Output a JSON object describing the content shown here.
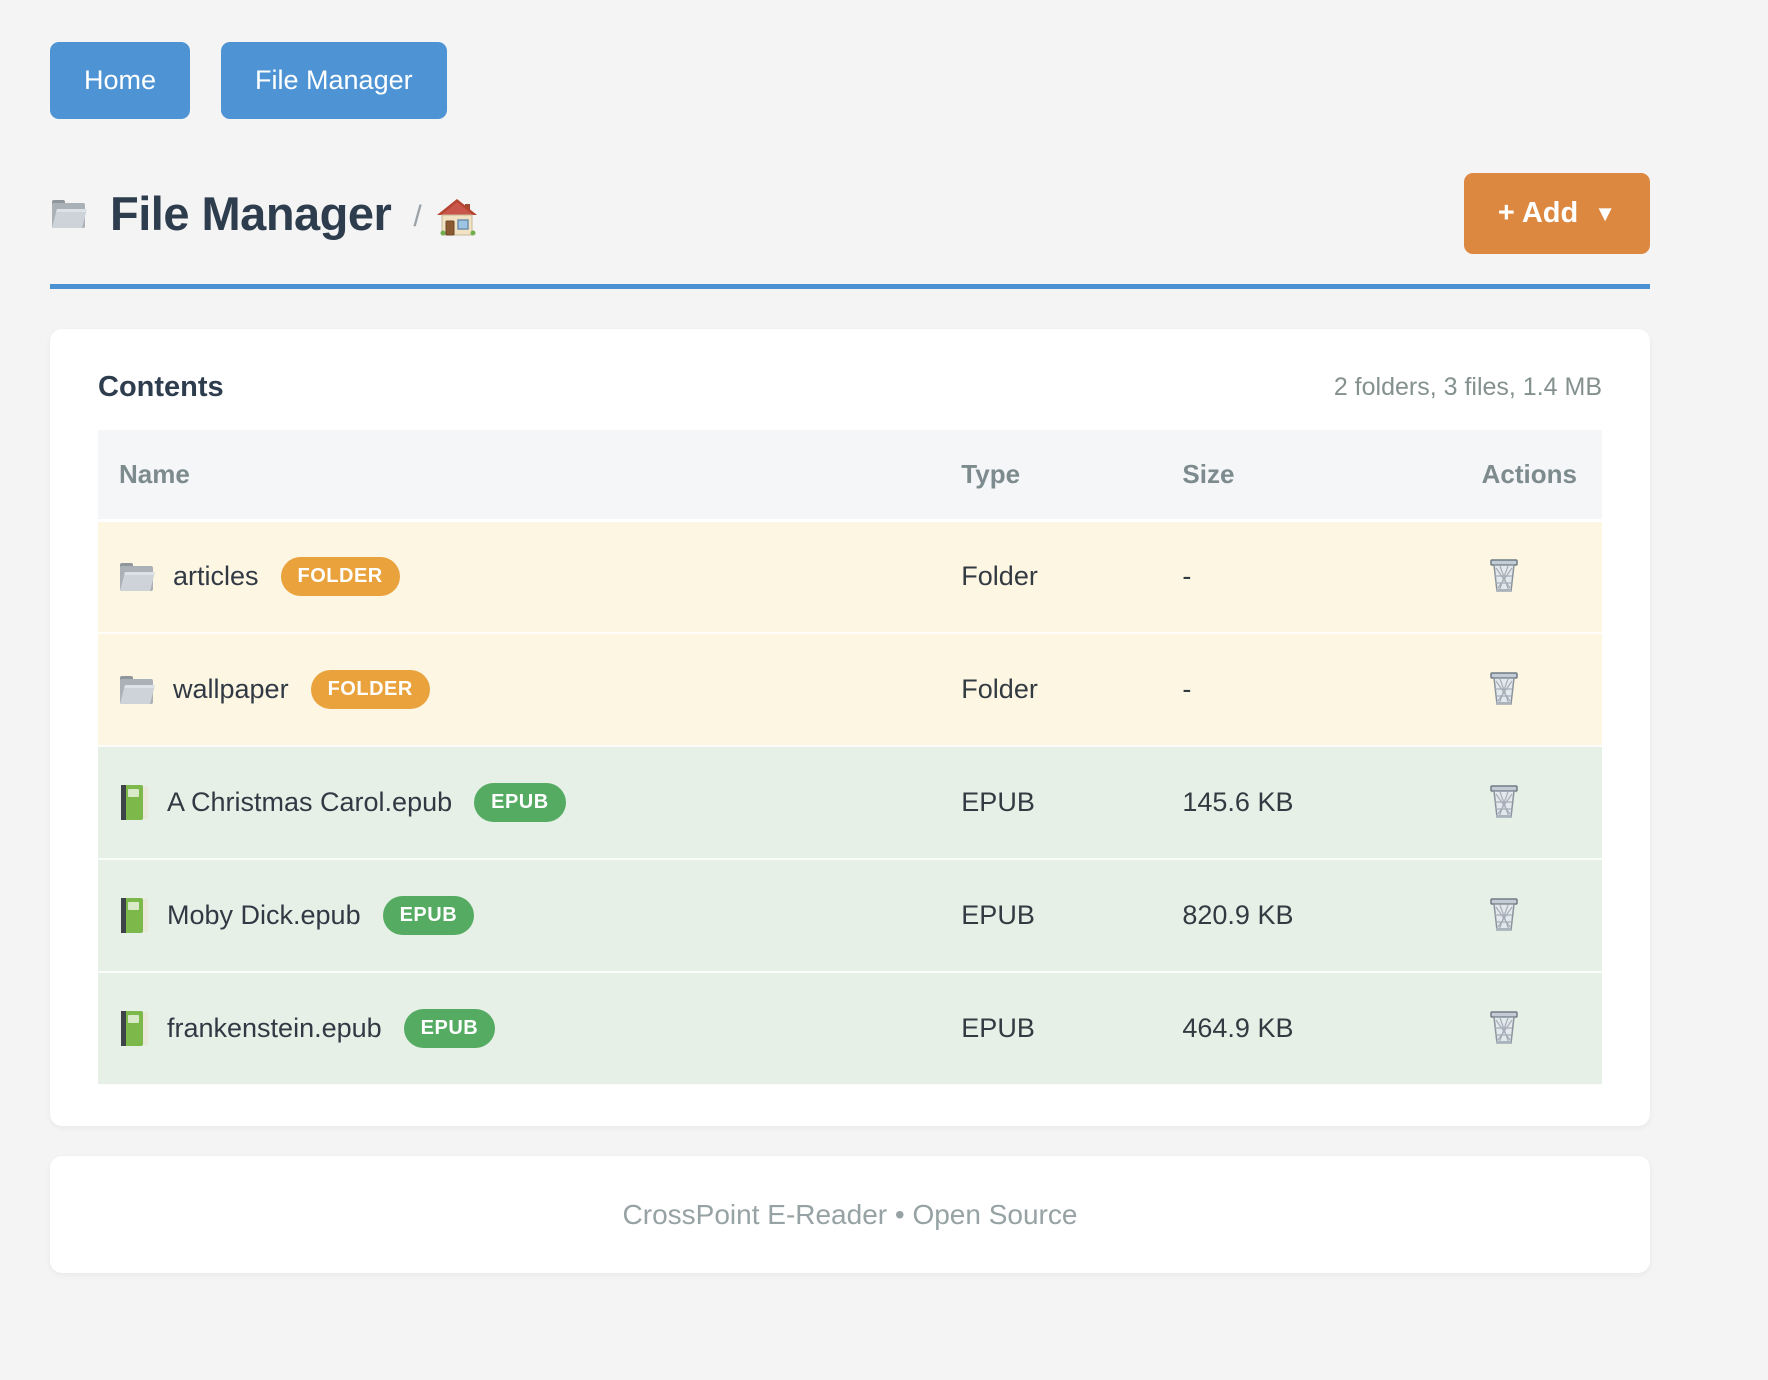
{
  "nav": {
    "buttons": [
      {
        "label": "Home"
      },
      {
        "label": "File Manager"
      }
    ]
  },
  "header": {
    "title_icon": "folder-icon",
    "title": "File Manager",
    "breadcrumb_separator": "/",
    "breadcrumb_home_icon": "house-icon",
    "add_button_label": "+ Add",
    "add_button_caret": "▼"
  },
  "contents": {
    "title": "Contents",
    "summary": "2 folders, 3 files, 1.4 MB",
    "table": {
      "columns": [
        "Name",
        "Type",
        "Size",
        "Actions"
      ],
      "rows": [
        {
          "icon": "folder-icon",
          "name": "articles",
          "badge": "FOLDER",
          "kind": "folder",
          "type": "Folder",
          "size": "-",
          "action_icon": "trash-icon"
        },
        {
          "icon": "folder-icon",
          "name": "wallpaper",
          "badge": "FOLDER",
          "kind": "folder",
          "type": "Folder",
          "size": "-",
          "action_icon": "trash-icon"
        },
        {
          "icon": "book-icon",
          "name": "A Christmas Carol.epub",
          "badge": "EPUB",
          "kind": "epub",
          "type": "EPUB",
          "size": "145.6 KB",
          "action_icon": "trash-icon"
        },
        {
          "icon": "book-icon",
          "name": "Moby Dick.epub",
          "badge": "EPUB",
          "kind": "epub",
          "type": "EPUB",
          "size": "820.9 KB",
          "action_icon": "trash-icon"
        },
        {
          "icon": "book-icon",
          "name": "frankenstein.epub",
          "badge": "EPUB",
          "kind": "epub",
          "type": "EPUB",
          "size": "464.9 KB",
          "action_icon": "trash-icon"
        }
      ]
    }
  },
  "footer": {
    "text": "CrossPoint E-Reader • Open Source"
  },
  "colors": {
    "page_background": "#f4f4f5",
    "nav_button": "#4e93d3",
    "add_button": "#dd8840",
    "rule_blue": "#4b90d2",
    "badge_folder": "#e9a23c",
    "badge_epub": "#55ab62",
    "row_folder_bg": "#fdf6e3",
    "row_epub_bg": "#e6f0e6",
    "table_header_bg": "#f4f6f8",
    "heading_text": "#2e3d4e",
    "muted_text": "#84918f"
  }
}
